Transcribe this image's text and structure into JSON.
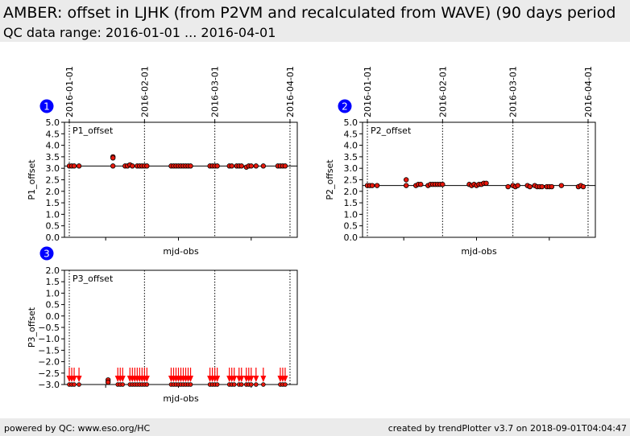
{
  "header": {
    "title": "AMBER: offset in LJHK (from P2VM and recalculated from WAVE) (90 days period",
    "subtitle": "QC data range: 2016-01-01 ... 2016-04-01"
  },
  "footer": {
    "left": "powered by QC: www.eso.org/HC",
    "right": "created by trendPlotter v3.7 on 2018-09-01T04:04:47"
  },
  "colors": {
    "marker_fill": "#e8180c",
    "arrow": "#ff0000",
    "badge": "#0000ff"
  },
  "chart_data": [
    {
      "type": "scatter",
      "panel": "1",
      "label": "P1_offset",
      "xlabel": "mjd-obs",
      "ylabel": "P1_offset",
      "xlim": [
        "2015-12-30",
        "2016-04-04"
      ],
      "ylim": [
        0.0,
        5.0
      ],
      "y_ticks": [
        "0.0",
        "0.5",
        "1.0",
        "1.5",
        "2.0",
        "2.5",
        "3.0",
        "3.5",
        "4.0",
        "4.5",
        "5.0"
      ],
      "date_ticks": [
        "2016-01-01",
        "2016-02-01",
        "2016-03-01",
        "2016-04-01"
      ],
      "reference_line": 3.1,
      "x": [
        "2016-01-01",
        "2016-01-02",
        "2016-01-03",
        "2016-01-05",
        "2016-01-19",
        "2016-01-19",
        "2016-01-19",
        "2016-01-24",
        "2016-01-25",
        "2016-01-26",
        "2016-01-27",
        "2016-01-29",
        "2016-01-30",
        "2016-01-31",
        "2016-02-01",
        "2016-02-02",
        "2016-02-12",
        "2016-02-13",
        "2016-02-14",
        "2016-02-15",
        "2016-02-16",
        "2016-02-17",
        "2016-02-18",
        "2016-02-19",
        "2016-02-20",
        "2016-02-28",
        "2016-02-29",
        "2016-03-01",
        "2016-03-02",
        "2016-03-07",
        "2016-03-08",
        "2016-03-10",
        "2016-03-11",
        "2016-03-12",
        "2016-03-14",
        "2016-03-15",
        "2016-03-16",
        "2016-03-18",
        "2016-03-21",
        "2016-03-27",
        "2016-03-28",
        "2016-03-29",
        "2016-03-30"
      ],
      "y": [
        3.1,
        3.1,
        3.1,
        3.1,
        3.5,
        3.45,
        3.1,
        3.1,
        3.1,
        3.15,
        3.1,
        3.1,
        3.1,
        3.1,
        3.1,
        3.1,
        3.1,
        3.1,
        3.1,
        3.1,
        3.1,
        3.1,
        3.1,
        3.1,
        3.1,
        3.1,
        3.1,
        3.1,
        3.1,
        3.1,
        3.1,
        3.1,
        3.1,
        3.1,
        3.05,
        3.1,
        3.1,
        3.1,
        3.1,
        3.1,
        3.1,
        3.1,
        3.1
      ]
    },
    {
      "type": "scatter",
      "panel": "2",
      "label": "P2_offset",
      "xlabel": "mjd-obs",
      "ylabel": "P2_offset",
      "xlim": [
        "2015-12-30",
        "2016-04-04"
      ],
      "ylim": [
        0.0,
        5.0
      ],
      "y_ticks": [
        "0.0",
        "0.5",
        "1.0",
        "1.5",
        "2.0",
        "2.5",
        "3.0",
        "3.5",
        "4.0",
        "4.5",
        "5.0"
      ],
      "date_ticks": [
        "2016-01-01",
        "2016-02-01",
        "2016-03-01",
        "2016-04-01"
      ],
      "reference_line": 2.25,
      "x": [
        "2016-01-01",
        "2016-01-02",
        "2016-01-03",
        "2016-01-05",
        "2016-01-17",
        "2016-01-17",
        "2016-01-21",
        "2016-01-22",
        "2016-01-23",
        "2016-01-26",
        "2016-01-27",
        "2016-01-28",
        "2016-01-29",
        "2016-01-30",
        "2016-01-31",
        "2016-02-01",
        "2016-02-12",
        "2016-02-13",
        "2016-02-14",
        "2016-02-15",
        "2016-02-16",
        "2016-02-17",
        "2016-02-18",
        "2016-02-19",
        "2016-02-28",
        "2016-03-01",
        "2016-03-02",
        "2016-03-03",
        "2016-03-07",
        "2016-03-08",
        "2016-03-10",
        "2016-03-11",
        "2016-03-12",
        "2016-03-13",
        "2016-03-15",
        "2016-03-16",
        "2016-03-17",
        "2016-03-21",
        "2016-03-28",
        "2016-03-29",
        "2016-03-30"
      ],
      "y": [
        2.25,
        2.25,
        2.25,
        2.25,
        2.5,
        2.25,
        2.25,
        2.3,
        2.3,
        2.25,
        2.3,
        2.3,
        2.3,
        2.3,
        2.3,
        2.3,
        2.3,
        2.25,
        2.3,
        2.25,
        2.3,
        2.3,
        2.35,
        2.35,
        2.2,
        2.25,
        2.2,
        2.25,
        2.25,
        2.2,
        2.25,
        2.2,
        2.2,
        2.2,
        2.2,
        2.2,
        2.2,
        2.25,
        2.2,
        2.25,
        2.2
      ]
    },
    {
      "type": "scatter",
      "panel": "3",
      "label": "P3_offset",
      "xlabel": "mjd-obs",
      "ylabel": "P3_offset",
      "xlim": [
        "2015-12-30",
        "2016-04-04"
      ],
      "ylim": [
        -3.0,
        2.0
      ],
      "y_ticks": [
        "−3.0",
        "−2.5",
        "−2.0",
        "−1.5",
        "−1.0",
        "−0.5",
        "0.0",
        "0.5",
        "1.0",
        "1.5",
        "2.0"
      ],
      "date_ticks": [
        "2016-01-01",
        "2016-02-01",
        "2016-03-01",
        "2016-04-01"
      ],
      "note": "most points lie below the plotted range and are shown as downward arrows",
      "x_visible": [
        "2016-01-17",
        "2016-01-17"
      ],
      "y_visible": [
        -2.8,
        -2.9
      ],
      "x_below_range": [
        "2016-01-01",
        "2016-01-02",
        "2016-01-03",
        "2016-01-05",
        "2016-01-21",
        "2016-01-22",
        "2016-01-23",
        "2016-01-26",
        "2016-01-27",
        "2016-01-28",
        "2016-01-29",
        "2016-01-30",
        "2016-01-31",
        "2016-02-01",
        "2016-02-02",
        "2016-02-12",
        "2016-02-13",
        "2016-02-14",
        "2016-02-15",
        "2016-02-16",
        "2016-02-17",
        "2016-02-18",
        "2016-02-19",
        "2016-02-20",
        "2016-02-28",
        "2016-02-29",
        "2016-03-01",
        "2016-03-02",
        "2016-03-07",
        "2016-03-08",
        "2016-03-09",
        "2016-03-11",
        "2016-03-12",
        "2016-03-14",
        "2016-03-15",
        "2016-03-16",
        "2016-03-18",
        "2016-03-21",
        "2016-03-28",
        "2016-03-29",
        "2016-03-30"
      ]
    }
  ]
}
